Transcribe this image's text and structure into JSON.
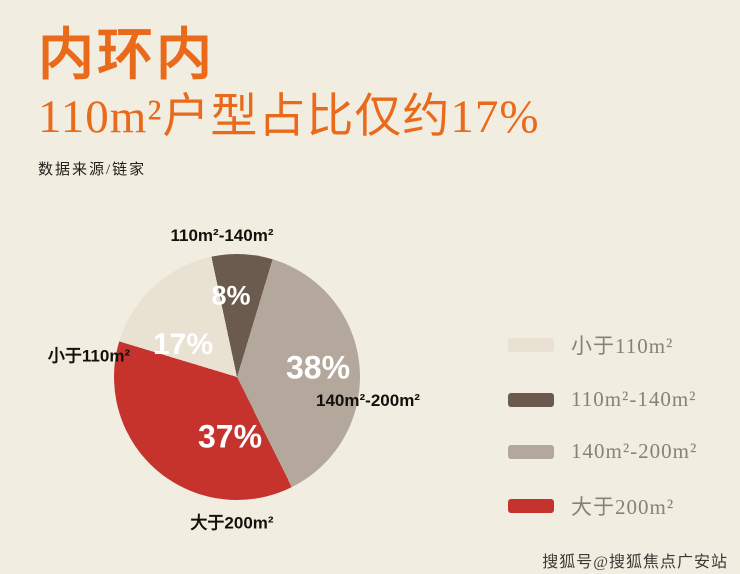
{
  "page": {
    "background": "#f1ede0",
    "accent_orange": "#ea6a1c"
  },
  "header": {
    "title": "内环内",
    "subtitle": "110m²户型占比仅约17%",
    "source": "数据来源/链家"
  },
  "chart_data": {
    "type": "pie",
    "title": "内环内110m²户型占比仅约17%",
    "source": "数据来源/链家",
    "legend_position": "right",
    "slices": [
      {
        "label": "110m²-140m²",
        "value": 8,
        "pct": "8%",
        "color": "#6b5a4e"
      },
      {
        "label": "140m²-200m²",
        "value": 38,
        "pct": "38%",
        "color": "#b4a79c"
      },
      {
        "label": "大于200m²",
        "value": 37,
        "pct": "37%",
        "color": "#c5332c"
      },
      {
        "label": "小于110m²",
        "value": 17,
        "pct": "17%",
        "color": "#e9e2d3"
      }
    ]
  },
  "legend": {
    "items": [
      {
        "label": "小于110m²",
        "color": "#e9e2d3"
      },
      {
        "label": "110m²-140m²",
        "color": "#6b5a4e"
      },
      {
        "label": "140m²-200m²",
        "color": "#b4a79c"
      },
      {
        "label": "大于200m²",
        "color": "#c5332c"
      }
    ]
  },
  "watermark": "搜狐号@搜狐焦点广安站"
}
